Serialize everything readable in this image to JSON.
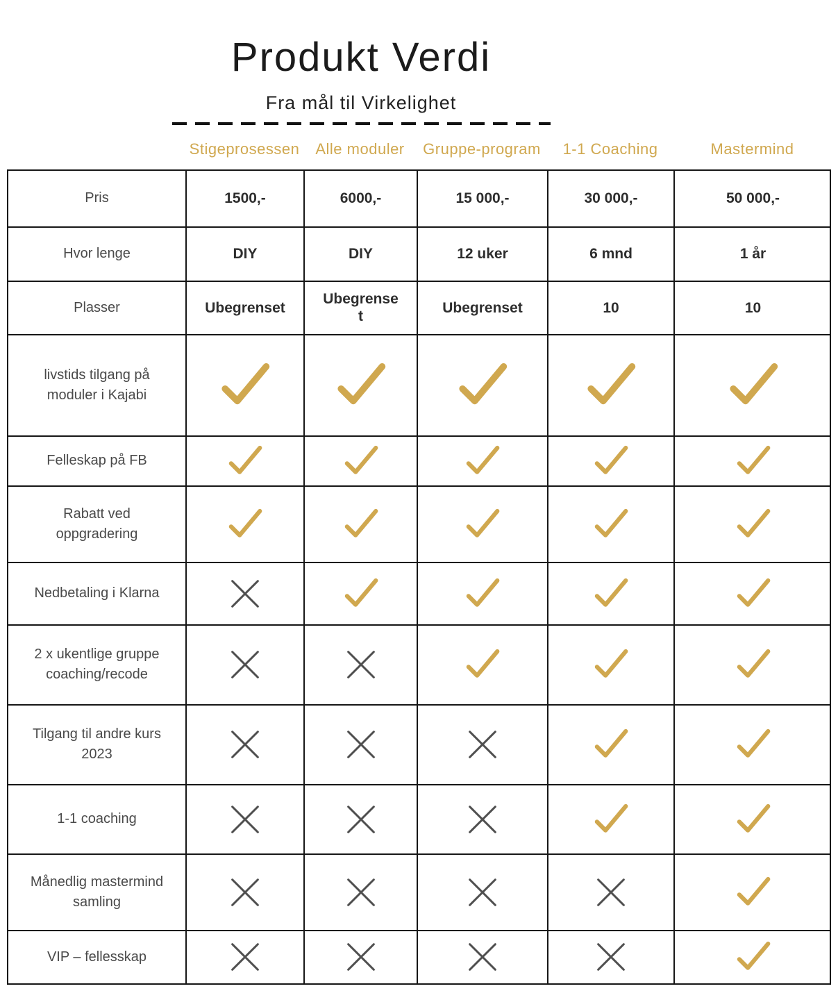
{
  "page": {
    "title": "Produkt Verdi",
    "subtitle": "Fra mål til Virkelighet"
  },
  "colors": {
    "gold": "#d0a84f",
    "cross": "#4f4f4f",
    "border": "#161616"
  },
  "columns": [
    "Stigeprosessen",
    "Alle moduler",
    "Gruppe-program",
    "1-1 Coaching",
    "Mastermind"
  ],
  "table": {
    "rows": [
      {
        "label": "Pris",
        "cells": [
          "1500,-",
          "6000,-",
          "15 000,-",
          "30 000,-",
          "50 000,-"
        ]
      },
      {
        "label": "Hvor lenge",
        "cells": [
          "DIY",
          "DIY",
          "12 uker",
          "6 mnd",
          "1 år"
        ]
      },
      {
        "label": "Plasser",
        "cells": [
          "Ubegrenset",
          "Ubegrenset",
          "Ubegrenset",
          "10",
          "10"
        ]
      },
      {
        "label": "livstids tilgang  på moduler i Kajabi",
        "cells": [
          "check",
          "check",
          "check",
          "check",
          "check"
        ]
      },
      {
        "label": "Felleskap på FB",
        "cells": [
          "check",
          "check",
          "check",
          "check",
          "check"
        ]
      },
      {
        "label": "Rabatt ved oppgradering",
        "cells": [
          "check",
          "check",
          "check",
          "check",
          "check"
        ]
      },
      {
        "label": "Nedbetaling i Klarna",
        "cells": [
          "cross",
          "check",
          "check",
          "check",
          "check"
        ]
      },
      {
        "label": "2 x ukentlige gruppe coaching/recode",
        "cells": [
          "cross",
          "cross",
          "check",
          "check",
          "check"
        ]
      },
      {
        "label": "Tilgang til andre kurs 2023",
        "cells": [
          "cross",
          "cross",
          "cross",
          "check",
          "check"
        ]
      },
      {
        "label": "1-1 coaching",
        "cells": [
          "cross",
          "cross",
          "cross",
          "check",
          "check"
        ]
      },
      {
        "label": "Månedlig mastermind samling",
        "cells": [
          "cross",
          "cross",
          "cross",
          "cross",
          "check"
        ]
      },
      {
        "label": "VIP – fellesskap",
        "cells": [
          "cross",
          "cross",
          "cross",
          "cross",
          "check"
        ]
      }
    ]
  }
}
